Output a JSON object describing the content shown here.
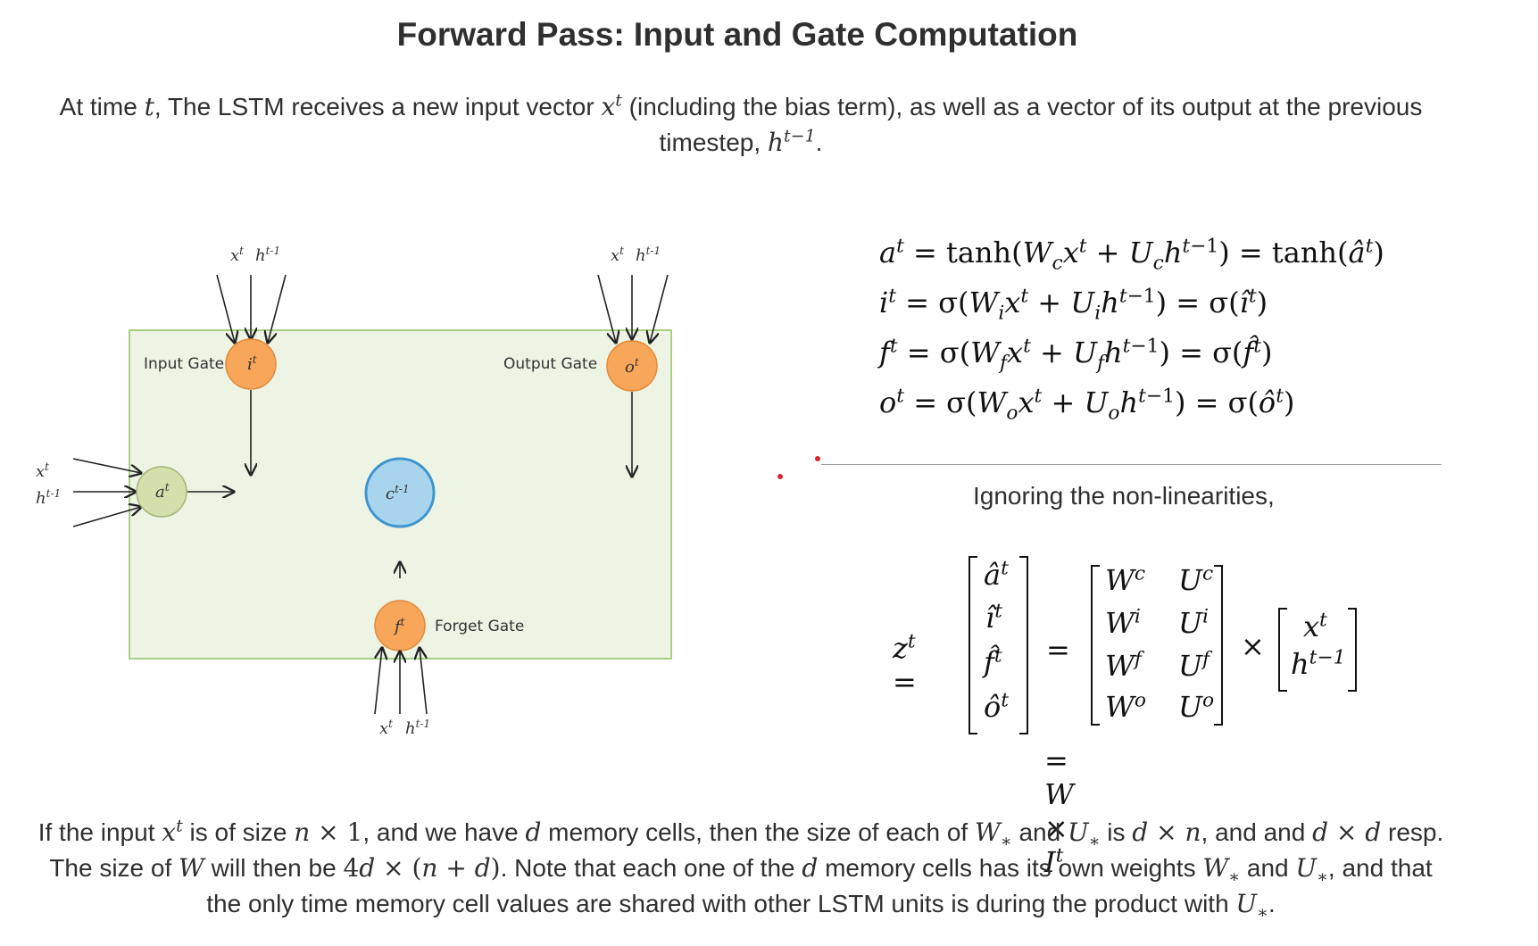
{
  "title": "Forward Pass: Input and Gate Computation",
  "intro": {
    "p1": "At time ",
    "t": "t",
    "p2": ", The LSTM receives a new input vector ",
    "x": "x",
    "x_sup": "t",
    "p3": " (including the bias term), as well as a vector of its output at the previous timestep, ",
    "h": "h",
    "h_sup": "t−1",
    "p4": "."
  },
  "diagram": {
    "input_gate_label": "Input Gate",
    "output_gate_label": "Output Gate",
    "forget_gate_label": "Forget Gate",
    "node_i": "i",
    "node_o": "o",
    "node_f": "f",
    "node_a": "a",
    "node_c": "c",
    "node_c_sup": "t-1",
    "node_sup": "t",
    "x_in": "x",
    "h_in": "h",
    "t_sup": "t",
    "tm1_sup": "t-1",
    "colors": {
      "box_fill": "#eef4e4",
      "box_stroke": "#a9cf86",
      "orange": "#f8a65a",
      "green": "#d3e0ac",
      "blue": "#a9d4ee",
      "blue_stroke": "#3d95cf"
    }
  },
  "equations": {
    "a_lhs": "a",
    "a_rhs": " = tanh(W",
    "a_sub": "c",
    "i_lhs": "i",
    "f_lhs": "f",
    "o_lhs": "o",
    "sigma": "σ",
    "tanh": "tanh"
  },
  "ignoring": "Ignoring the non-linearities,",
  "matrix": {
    "z": "z",
    "z_sup": "t",
    "col_left": [
      "â",
      "î",
      "f̂",
      "ô"
    ],
    "W_col": [
      "W",
      "W",
      "W",
      "W"
    ],
    "U_col": [
      "U",
      "U",
      "U",
      "U"
    ],
    "subs": [
      "c",
      "i",
      "f",
      "o"
    ],
    "x": "x",
    "h": "h",
    "W": "W",
    "I": "I",
    "times": "×",
    "eq": "="
  },
  "conclusion": {
    "l1a": "If the input ",
    "l1b": " is of size ",
    "l1c": ", and we have ",
    "l1d": " memory cells, then the size of each of ",
    "l1e": " and ",
    "l1f": " is ",
    "l1g": ", and and ",
    "l1h": " resp.",
    "l2a": "The size of ",
    "l2b": " will then be ",
    "l2c": ". Note that each one of the ",
    "l2d": " memory cells has its own weights ",
    "l2e": " and ",
    "l2f": ", and that",
    "l3a": "the only time memory cell values are shared with other LSTM units is during the product with ",
    "l3b": "."
  }
}
